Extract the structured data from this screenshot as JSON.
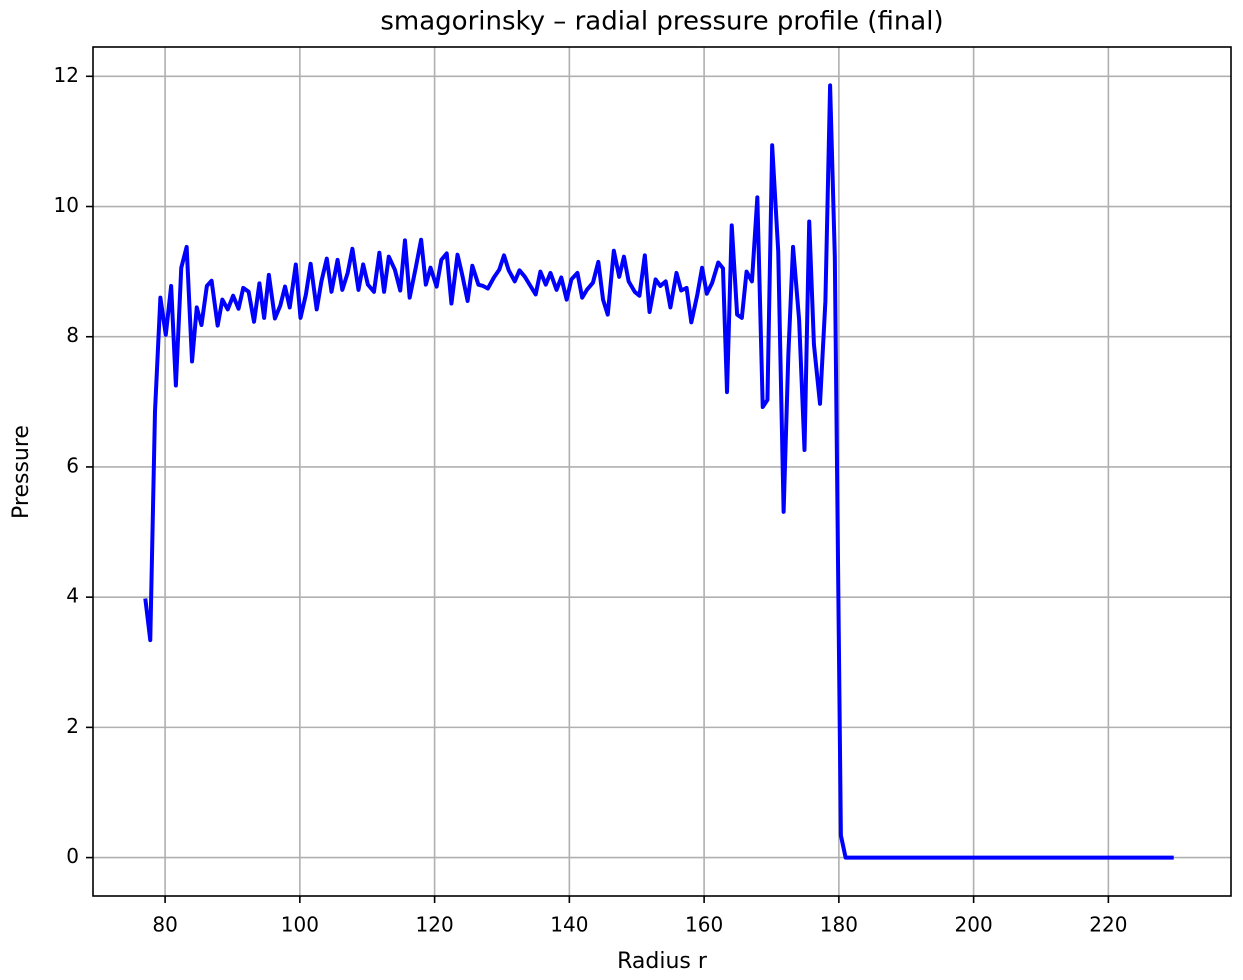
{
  "chart_data": {
    "type": "line",
    "title": "smagorinsky – radial pressure profile (final)",
    "x_label": "Radius r",
    "y_label": "Pressure",
    "x": [
      77.06,
      77.8,
      78.5,
      79.3,
      80.1,
      80.9,
      81.6,
      82.4,
      83.2,
      84.0,
      84.7,
      85.4,
      86.2,
      86.9,
      87.8,
      88.5,
      89.3,
      90.1,
      90.9,
      91.6,
      92.4,
      93.2,
      94.0,
      94.7,
      95.4,
      96.3,
      97.1,
      97.8,
      98.5,
      99.4,
      100.1,
      100.9,
      101.6,
      102.5,
      103.2,
      104.0,
      104.7,
      105.6,
      106.3,
      107.1,
      107.8,
      108.7,
      109.4,
      110.1,
      111.0,
      111.8,
      112.5,
      113.2,
      114.1,
      114.9,
      115.6,
      116.3,
      117.2,
      118.0,
      118.7,
      119.4,
      120.3,
      121.0,
      121.8,
      122.5,
      123.4,
      124.1,
      124.9,
      125.6,
      126.5,
      127.2,
      127.9,
      128.8,
      129.6,
      130.3,
      131.0,
      131.9,
      132.6,
      133.4,
      134.1,
      135.0,
      135.7,
      136.5,
      137.2,
      138.1,
      138.8,
      139.6,
      140.3,
      141.2,
      141.9,
      142.6,
      143.5,
      144.3,
      145.0,
      145.7,
      146.6,
      147.4,
      148.1,
      148.8,
      149.7,
      150.4,
      151.2,
      151.9,
      152.8,
      153.5,
      154.3,
      155.0,
      155.9,
      156.6,
      157.4,
      158.1,
      159.0,
      159.7,
      160.4,
      161.2,
      162.1,
      162.8,
      163.4,
      164.1,
      164.9,
      165.6,
      166.3,
      167.1,
      167.9,
      168.7,
      169.4,
      170.1,
      171.0,
      171.8,
      172.5,
      173.2,
      174.1,
      174.9,
      175.6,
      176.3,
      177.2,
      178.0,
      178.7,
      179.4,
      180.3,
      181.0,
      190.0,
      200.0,
      210.0,
      220.0,
      229.7
    ],
    "series": [
      {
        "name": "pressure",
        "color": "#0000ff",
        "values": [
          3.98,
          3.34,
          6.85,
          8.6,
          8.03,
          8.78,
          7.25,
          9.06,
          9.38,
          7.62,
          8.45,
          8.18,
          8.78,
          8.86,
          8.17,
          8.57,
          8.42,
          8.63,
          8.43,
          8.75,
          8.69,
          8.23,
          8.82,
          8.29,
          8.95,
          8.28,
          8.48,
          8.77,
          8.45,
          9.11,
          8.29,
          8.65,
          9.12,
          8.42,
          8.85,
          9.2,
          8.69,
          9.18,
          8.72,
          8.98,
          9.35,
          8.72,
          9.11,
          8.8,
          8.69,
          9.29,
          8.69,
          9.23,
          9.03,
          8.71,
          9.48,
          8.6,
          9.06,
          9.49,
          8.8,
          9.06,
          8.77,
          9.18,
          9.28,
          8.51,
          9.26,
          8.95,
          8.55,
          9.09,
          8.8,
          8.78,
          8.74,
          8.91,
          9.03,
          9.25,
          9.02,
          8.85,
          9.02,
          8.92,
          8.8,
          8.65,
          9.0,
          8.8,
          8.98,
          8.72,
          8.91,
          8.57,
          8.88,
          8.98,
          8.6,
          8.72,
          8.83,
          9.15,
          8.57,
          8.34,
          9.32,
          8.92,
          9.23,
          8.85,
          8.69,
          8.63,
          9.25,
          8.38,
          8.88,
          8.78,
          8.85,
          8.45,
          8.98,
          8.71,
          8.75,
          8.22,
          8.65,
          9.06,
          8.66,
          8.83,
          9.14,
          9.05,
          7.15,
          9.71,
          8.34,
          8.29,
          9.0,
          8.85,
          10.14,
          6.92,
          7.03,
          10.94,
          9.31,
          5.31,
          7.72,
          9.38,
          8.26,
          6.26,
          9.77,
          7.88,
          6.97,
          8.54,
          11.86,
          9.22,
          0.34,
          0,
          0,
          0,
          0,
          0,
          0
        ]
      }
    ],
    "xlim": [
      69.3,
      238.2
    ],
    "ylim": [
      -0.59,
      12.45
    ],
    "xticks": [
      80,
      100,
      120,
      140,
      160,
      180,
      200,
      220
    ],
    "yticks": [
      0,
      2,
      4,
      6,
      8,
      10,
      12
    ],
    "grid": true
  }
}
